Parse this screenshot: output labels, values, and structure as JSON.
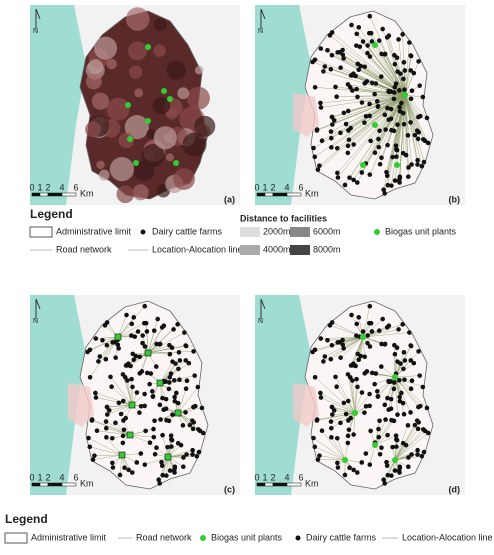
{
  "north": "N",
  "scale_bar": {
    "ticks": [
      "0",
      "1",
      "2",
      "4",
      "6"
    ],
    "unit": "Km"
  },
  "panels": [
    {
      "label": "(a)"
    },
    {
      "label": "(b)"
    },
    {
      "label": "(c)"
    },
    {
      "label": "(d)"
    }
  ],
  "legend_top": {
    "title": "Legend",
    "items": [
      "Administrative limit",
      "Dairy cattle farms",
      "Biogas unit plants",
      "Road network",
      "Location-Alocation line"
    ],
    "distance": {
      "title": "Distance to facilities",
      "classes": [
        "2000m",
        "6000m",
        "4000m",
        "8000m"
      ]
    }
  },
  "legend_bottom": {
    "title": "Legend",
    "items": [
      "Administrative limit",
      "Road network",
      "Biogas unit plants",
      "Dairy cattle farms",
      "Location-Alocation line"
    ]
  }
}
